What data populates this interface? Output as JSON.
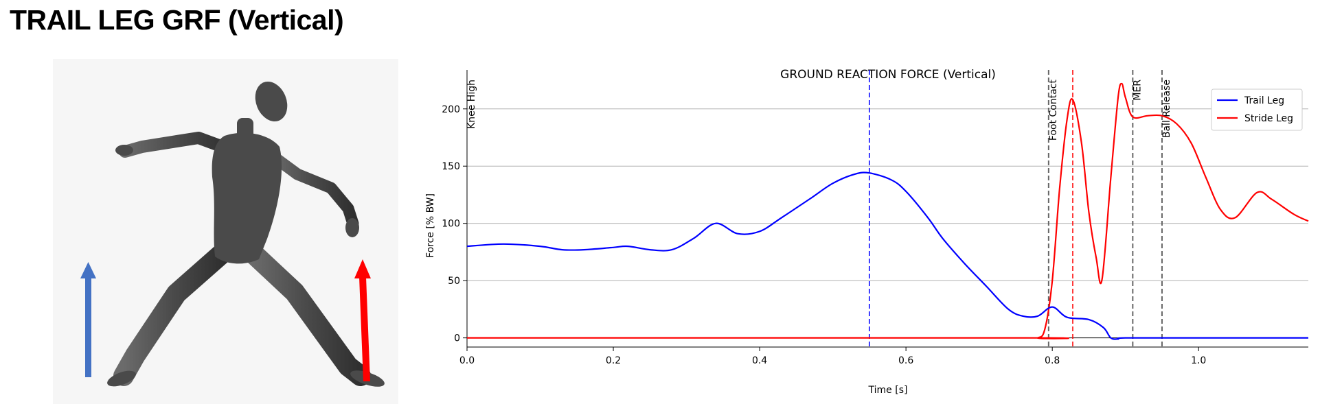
{
  "page": {
    "title": "TRAIL LEG GRF (Vertical)"
  },
  "colors": {
    "trail": "#0000ff",
    "stride": "#ff0000",
    "event": "#666666",
    "figure_panel": "#f6f6f6",
    "body": "#4a4a4a",
    "arrow_trail": "#4472c4",
    "arrow_stride": "#ff0000"
  },
  "figure": {
    "icon": "humanoid-pitcher-figure",
    "arrows": [
      "trail-leg-force-arrow",
      "stride-leg-force-arrow"
    ]
  },
  "chart_data": {
    "type": "line",
    "title": "GROUND REACTION FORCE (Vertical)",
    "xlabel": "Time [s]",
    "ylabel": "Force [% BW]",
    "xlim": [
      0,
      1.15
    ],
    "ylim": [
      -8,
      234
    ],
    "xticks": [
      0.0,
      0.2,
      0.4,
      0.6,
      0.8,
      1.0
    ],
    "xtick_labels": [
      "0.0",
      "0.2",
      "0.4",
      "0.6",
      "0.8",
      "1.0"
    ],
    "yticks": [
      0,
      50,
      100,
      150,
      200
    ],
    "ytick_labels": [
      "0",
      "50",
      "100",
      "150",
      "200"
    ],
    "grid": "horizontal",
    "legend": {
      "position": "top-right",
      "entries": [
        "Trail Leg",
        "Stride Leg"
      ]
    },
    "events": [
      {
        "label": "Knee High",
        "x": 0.0
      },
      {
        "label": "Foot Contact",
        "x": 0.795
      },
      {
        "label": "MER",
        "x": 0.91
      },
      {
        "label": "Ball Release",
        "x": 0.95
      }
    ],
    "peak_markers": [
      {
        "series": "Trail Leg",
        "x": 0.55
      },
      {
        "series": "Stride Leg",
        "x": 0.828
      }
    ],
    "series": [
      {
        "name": "Trail Leg",
        "x": [
          0.0,
          0.05,
          0.1,
          0.13,
          0.16,
          0.2,
          0.22,
          0.25,
          0.28,
          0.31,
          0.34,
          0.37,
          0.4,
          0.43,
          0.47,
          0.5,
          0.53,
          0.55,
          0.58,
          0.6,
          0.63,
          0.65,
          0.68,
          0.71,
          0.74,
          0.76,
          0.78,
          0.8,
          0.82,
          0.85,
          0.87,
          0.88,
          0.89,
          0.9,
          1.0,
          1.15
        ],
        "values": [
          80,
          82,
          80,
          77,
          77,
          79,
          80,
          77,
          77,
          87,
          100,
          91,
          93,
          105,
          122,
          135,
          143,
          144,
          138,
          128,
          105,
          87,
          65,
          45,
          25,
          19,
          19,
          27,
          18,
          16,
          9,
          0,
          -1,
          0,
          0,
          0
        ]
      },
      {
        "name": "Stride Leg",
        "x": [
          0.0,
          0.76,
          0.78,
          0.79,
          0.8,
          0.81,
          0.82,
          0.828,
          0.84,
          0.85,
          0.86,
          0.868,
          0.88,
          0.89,
          0.895,
          0.9,
          0.91,
          0.93,
          0.95,
          0.97,
          0.99,
          1.01,
          1.03,
          1.05,
          1.08,
          1.1,
          1.13,
          1.15
        ],
        "values": [
          0,
          0,
          0,
          8,
          50,
          130,
          190,
          208,
          170,
          110,
          70,
          51,
          140,
          210,
          222,
          210,
          193,
          194,
          194,
          187,
          170,
          140,
          112,
          105,
          127,
          121,
          108,
          102
        ]
      }
    ]
  }
}
